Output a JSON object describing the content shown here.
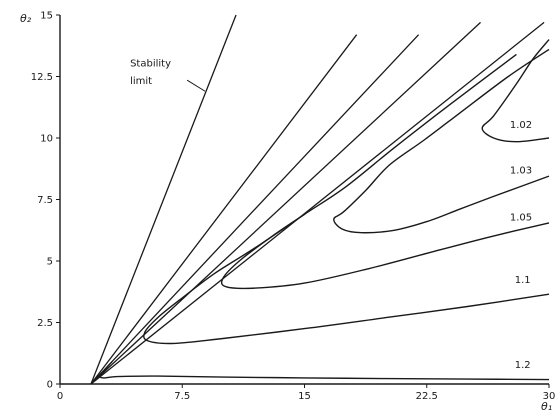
{
  "chart_data": {
    "type": "line",
    "title": "",
    "xlabel": "θ₁",
    "ylabel": "θ₂",
    "xlim": [
      0,
      30
    ],
    "ylim": [
      0,
      15
    ],
    "grid": false,
    "x_ticks": [
      0,
      7.5,
      15,
      22.5,
      30
    ],
    "x_tick_labels": [
      "0",
      "7.5",
      "15",
      "22.5",
      "30"
    ],
    "y_ticks": [
      0,
      2.5,
      5,
      7.5,
      10,
      12.5,
      15
    ],
    "y_tick_labels": [
      "0",
      "2.5",
      "5",
      "7.5",
      "10",
      "12.5",
      "15"
    ],
    "annotations": [
      {
        "text": "Stability",
        "x": 4.3,
        "y": 12.9
      },
      {
        "text": "limit",
        "x": 4.3,
        "y": 12.2
      }
    ],
    "rays": [
      {
        "from": [
          1.9,
          0
        ],
        "to": [
          10.8,
          15
        ]
      },
      {
        "from": [
          1.9,
          0
        ],
        "to": [
          18.2,
          14.2
        ]
      },
      {
        "from": [
          1.9,
          0
        ],
        "to": [
          22.0,
          14.2
        ]
      },
      {
        "from": [
          1.9,
          0
        ],
        "to": [
          25.8,
          14.7
        ]
      },
      {
        "from": [
          1.9,
          0
        ],
        "to": [
          29.7,
          14.7
        ]
      }
    ],
    "series": [
      {
        "name": "1.02",
        "points": [
          [
            30,
            14.0
          ],
          [
            29.0,
            13.2
          ],
          [
            28.0,
            12.2
          ],
          [
            26.6,
            10.9
          ],
          [
            25.9,
            10.4
          ],
          [
            26.6,
            10.0
          ],
          [
            28.0,
            9.85
          ],
          [
            30,
            10.0
          ]
        ]
      },
      {
        "name": "1.03",
        "points": [
          [
            30,
            13.6
          ],
          [
            27.5,
            12.5
          ],
          [
            24.5,
            11.0
          ],
          [
            22.3,
            9.9
          ],
          [
            20.2,
            8.9
          ],
          [
            18.8,
            7.9
          ],
          [
            17.4,
            7.0
          ],
          [
            16.8,
            6.7
          ],
          [
            17.3,
            6.3
          ],
          [
            18.5,
            6.15
          ],
          [
            20.5,
            6.25
          ],
          [
            22.5,
            6.6
          ],
          [
            24.5,
            7.1
          ],
          [
            26.5,
            7.6
          ],
          [
            30,
            8.45
          ]
        ]
      },
      {
        "name": "1.05",
        "points": [
          [
            28.0,
            13.4
          ],
          [
            24.0,
            11.4
          ],
          [
            20.5,
            9.6
          ],
          [
            17.5,
            8.0
          ],
          [
            15.0,
            6.9
          ],
          [
            13.0,
            6.0
          ],
          [
            11.0,
            5.0
          ],
          [
            10.0,
            4.3
          ],
          [
            10.2,
            3.95
          ],
          [
            12.0,
            3.9
          ],
          [
            15.0,
            4.1
          ],
          [
            19.0,
            4.7
          ],
          [
            23.0,
            5.4
          ],
          [
            26.5,
            6.0
          ],
          [
            30,
            6.55
          ]
        ]
      },
      {
        "name": "1.1",
        "points": [
          [
            15.0,
            6.9
          ],
          [
            12.0,
            5.55
          ],
          [
            9.5,
            4.5
          ],
          [
            7.5,
            3.5
          ],
          [
            6.0,
            2.7
          ],
          [
            5.2,
            2.1
          ],
          [
            5.4,
            1.75
          ],
          [
            7.0,
            1.65
          ],
          [
            10.0,
            1.85
          ],
          [
            15.0,
            2.25
          ],
          [
            20.0,
            2.7
          ],
          [
            25.0,
            3.15
          ],
          [
            30,
            3.65
          ]
        ]
      },
      {
        "name": "1.2",
        "points": [
          [
            3.2,
            0.92
          ],
          [
            2.5,
            0.35
          ],
          [
            2.7,
            0.25
          ],
          [
            3.5,
            0.3
          ],
          [
            6.0,
            0.32
          ],
          [
            10.0,
            0.28
          ],
          [
            15.0,
            0.25
          ],
          [
            20.0,
            0.22
          ],
          [
            25.0,
            0.2
          ],
          [
            30,
            0.18
          ]
        ]
      }
    ],
    "curve_labels": [
      {
        "text": "1.02",
        "x": 27.6,
        "y": 10.4
      },
      {
        "text": "1.03",
        "x": 27.6,
        "y": 8.55
      },
      {
        "text": "1.05",
        "x": 27.6,
        "y": 6.65
      },
      {
        "text": "1.1",
        "x": 27.9,
        "y": 4.1
      },
      {
        "text": "1.2",
        "x": 27.9,
        "y": 0.65
      }
    ]
  }
}
